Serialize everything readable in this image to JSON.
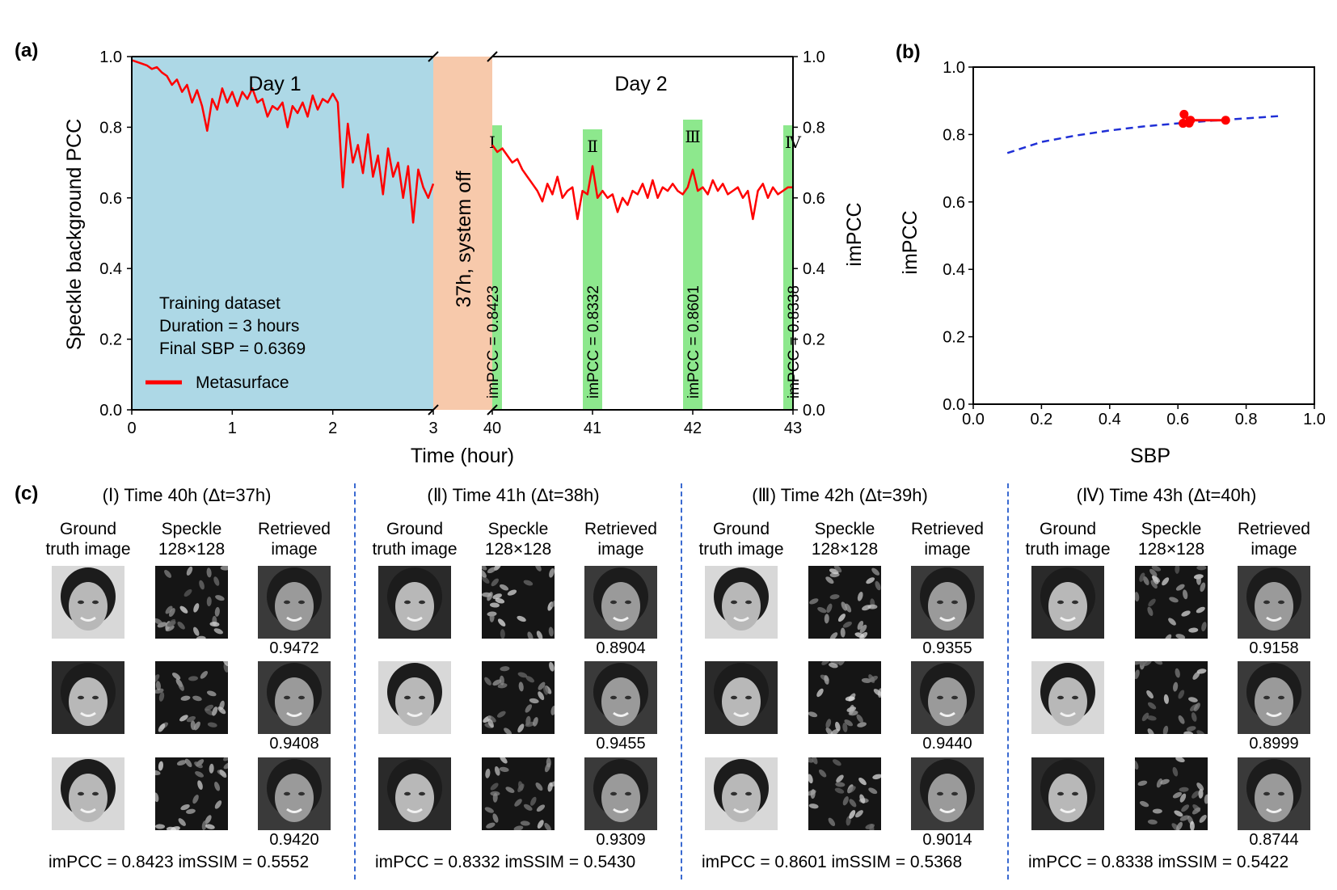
{
  "panel_labels": {
    "a": "(a)",
    "b": "(b)",
    "c": "(c)"
  },
  "colors": {
    "day1_bg": "#add8e6",
    "off_bg": "#f7c9ab",
    "window": "#8de88d",
    "series": "#ff0000",
    "fit": "#1f2fd6",
    "divider": "#3a6ad1"
  },
  "chart_data": [
    {
      "type": "line",
      "panel": "a",
      "xlabel": "Time (hour)",
      "ylabel": "Speckle background PCC",
      "ylabel_right": "imPCC",
      "ylim": [
        0,
        1.0
      ],
      "yticks": [
        "0.0",
        "0.2",
        "0.4",
        "0.6",
        "0.8",
        "1.0"
      ],
      "xticks_left": [
        "0",
        "1",
        "2",
        "3"
      ],
      "xticks_right": [
        "40",
        "41",
        "42",
        "43"
      ],
      "region_labels": {
        "day1": "Day 1",
        "day2": "Day 2",
        "off": "37h, system off"
      },
      "annotation": [
        "Training dataset",
        "Duration = 3 hours",
        "Final SBP = 0.6369"
      ],
      "legend": "Metasurface",
      "windows": [
        {
          "roman": "Ⅰ",
          "hour": 40,
          "label": "imPCC = 0.8423"
        },
        {
          "roman": "Ⅱ",
          "hour": 41,
          "label": "imPCC = 0.8332"
        },
        {
          "roman": "Ⅲ",
          "hour": 42,
          "label": "imPCC = 0.8601"
        },
        {
          "roman": "Ⅳ",
          "hour": 43,
          "label": "imPCC = 0.8338"
        }
      ],
      "series_day1": {
        "x": [
          0,
          0.05,
          0.1,
          0.15,
          0.2,
          0.25,
          0.3,
          0.35,
          0.4,
          0.45,
          0.5,
          0.55,
          0.6,
          0.65,
          0.7,
          0.75,
          0.8,
          0.85,
          0.9,
          0.95,
          1.0,
          1.05,
          1.1,
          1.15,
          1.2,
          1.25,
          1.3,
          1.35,
          1.4,
          1.45,
          1.5,
          1.55,
          1.6,
          1.65,
          1.7,
          1.75,
          1.8,
          1.85,
          1.9,
          1.95,
          2.0,
          2.05,
          2.1,
          2.15,
          2.2,
          2.25,
          2.3,
          2.35,
          2.4,
          2.45,
          2.5,
          2.55,
          2.6,
          2.65,
          2.7,
          2.75,
          2.8,
          2.85,
          2.9,
          2.95,
          3.0
        ],
        "y": [
          0.99,
          0.985,
          0.98,
          0.975,
          0.965,
          0.97,
          0.955,
          0.945,
          0.92,
          0.935,
          0.9,
          0.92,
          0.87,
          0.905,
          0.86,
          0.79,
          0.88,
          0.85,
          0.91,
          0.87,
          0.9,
          0.86,
          0.9,
          0.88,
          0.91,
          0.87,
          0.88,
          0.83,
          0.86,
          0.85,
          0.87,
          0.8,
          0.86,
          0.84,
          0.87,
          0.83,
          0.89,
          0.85,
          0.88,
          0.87,
          0.895,
          0.87,
          0.63,
          0.81,
          0.7,
          0.75,
          0.67,
          0.78,
          0.66,
          0.72,
          0.61,
          0.74,
          0.66,
          0.7,
          0.6,
          0.69,
          0.53,
          0.68,
          0.63,
          0.6,
          0.64
        ]
      },
      "series_day2": {
        "x": [
          40,
          40.05,
          40.1,
          40.15,
          40.2,
          40.25,
          40.3,
          40.35,
          40.4,
          40.45,
          40.5,
          40.55,
          40.6,
          40.65,
          40.7,
          40.75,
          40.8,
          40.85,
          40.9,
          40.95,
          41.0,
          41.05,
          41.1,
          41.15,
          41.2,
          41.25,
          41.3,
          41.35,
          41.4,
          41.45,
          41.5,
          41.55,
          41.6,
          41.65,
          41.7,
          41.75,
          41.8,
          41.85,
          41.9,
          41.95,
          42.0,
          42.05,
          42.1,
          42.15,
          42.2,
          42.25,
          42.3,
          42.35,
          42.4,
          42.45,
          42.5,
          42.55,
          42.6,
          42.65,
          42.7,
          42.75,
          42.8,
          42.85,
          42.9,
          42.95,
          43.0
        ],
        "y": [
          0.75,
          0.73,
          0.74,
          0.72,
          0.7,
          0.71,
          0.68,
          0.66,
          0.64,
          0.62,
          0.59,
          0.64,
          0.61,
          0.66,
          0.6,
          0.62,
          0.63,
          0.54,
          0.62,
          0.61,
          0.69,
          0.6,
          0.62,
          0.6,
          0.61,
          0.56,
          0.6,
          0.58,
          0.62,
          0.61,
          0.64,
          0.6,
          0.65,
          0.6,
          0.63,
          0.62,
          0.64,
          0.62,
          0.61,
          0.63,
          0.68,
          0.62,
          0.63,
          0.61,
          0.65,
          0.62,
          0.64,
          0.61,
          0.62,
          0.63,
          0.6,
          0.62,
          0.54,
          0.62,
          0.64,
          0.6,
          0.63,
          0.61,
          0.62,
          0.63,
          0.63
        ]
      }
    },
    {
      "type": "scatter",
      "panel": "b",
      "xlabel": "SBP",
      "ylabel": "imPCC",
      "xlim": [
        0,
        1.0
      ],
      "ylim": [
        0,
        1.0
      ],
      "xticks": [
        "0.0",
        "0.2",
        "0.4",
        "0.6",
        "0.8",
        "1.0"
      ],
      "yticks": [
        "0.0",
        "0.2",
        "0.4",
        "0.6",
        "0.8",
        "1.0"
      ],
      "points": {
        "x": [
          0.6369,
          0.615,
          0.618,
          0.633,
          0.74
        ],
        "y": [
          0.8423,
          0.8332,
          0.8601,
          0.8338,
          0.8423
        ]
      },
      "fit": {
        "x": [
          0.1,
          0.2,
          0.3,
          0.4,
          0.5,
          0.6,
          0.7,
          0.8,
          0.9
        ],
        "y": [
          0.745,
          0.778,
          0.797,
          0.812,
          0.824,
          0.833,
          0.841,
          0.848,
          0.855
        ]
      }
    }
  ],
  "panel_c": {
    "col_headers": {
      "gt": [
        "Ground",
        "truth image"
      ],
      "sp": [
        "Speckle",
        "128×128"
      ],
      "rt": [
        "Retrieved",
        "image"
      ]
    },
    "groups": [
      {
        "title": "(Ⅰ) Time 40h (Δt=37h)",
        "values": [
          "0.9472",
          "0.9408",
          "0.9420"
        ],
        "footer": "imPCC = 0.8423 imSSIM = 0.5552"
      },
      {
        "title": "(Ⅱ) Time 41h (Δt=38h)",
        "values": [
          "0.8904",
          "0.9455",
          "0.9309"
        ],
        "footer": "imPCC = 0.8332 imSSIM = 0.5430"
      },
      {
        "title": "(Ⅲ) Time 42h (Δt=39h)",
        "values": [
          "0.9355",
          "0.9440",
          "0.9014"
        ],
        "footer": "imPCC = 0.8601 imSSIM = 0.5368"
      },
      {
        "title": "(Ⅳ) Time 43h (Δt=40h)",
        "values": [
          "0.9158",
          "0.8999",
          "0.8744"
        ],
        "footer": "imPCC = 0.8338 imSSIM = 0.5422"
      }
    ]
  }
}
